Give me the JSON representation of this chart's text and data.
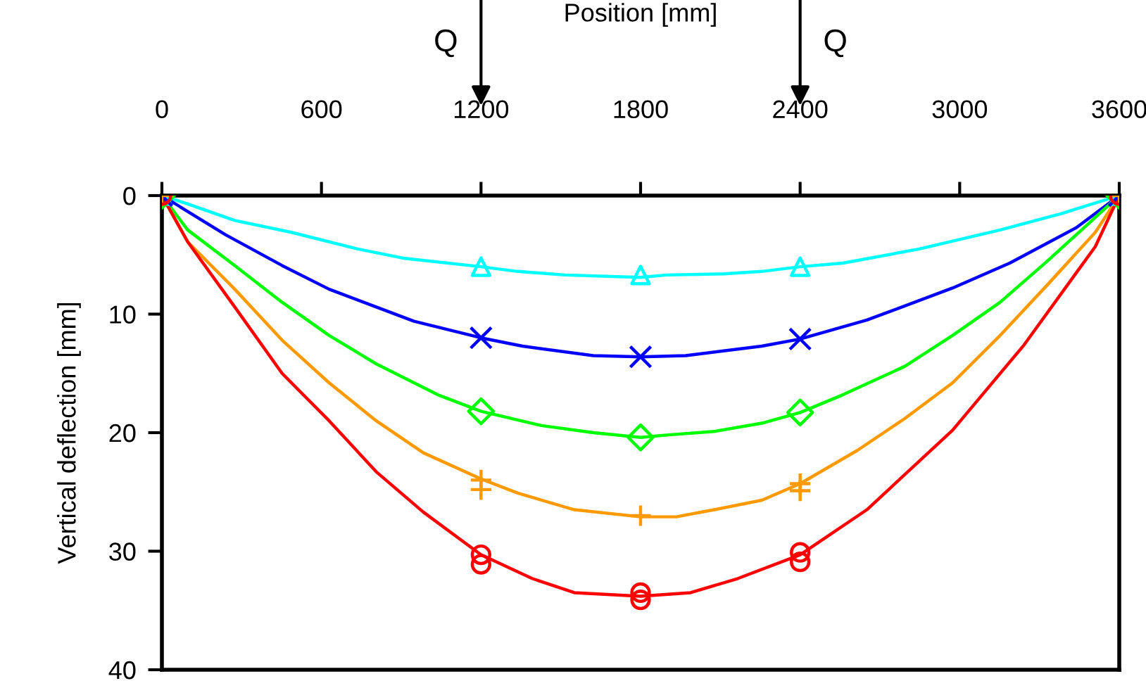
{
  "chart_data": {
    "type": "line",
    "xlabel": "Position [mm]",
    "ylabel": "Vertical deflection [mm]",
    "xlim": [
      0,
      3600
    ],
    "xticks": [
      0,
      600,
      1200,
      1800,
      2400,
      3000,
      3600
    ],
    "ylim": [
      40,
      0
    ],
    "yticks": [
      0,
      10,
      20,
      30,
      40
    ],
    "grid": false,
    "legend": false,
    "marker": "none",
    "line_style": "solid",
    "annotations": [
      "Q",
      "Q"
    ],
    "series": [
      {
        "color": "#00ffff",
        "x": [
          0,
          97,
          274,
          487,
          736,
          913,
          1200,
          1338,
          1516,
          1800,
          1898,
          2113,
          2256,
          2400,
          2561,
          2848,
          3152,
          3385,
          3600
        ],
        "values": [
          0,
          0.7,
          2.1,
          3.1,
          4.5,
          5.3,
          6.0,
          6.4,
          6.7,
          6.9,
          6.7,
          6.6,
          6.4,
          6.0,
          5.7,
          4.5,
          2.9,
          1.5,
          0
        ]
      },
      {
        "color": "#0000ff",
        "x": [
          0,
          239,
          452,
          629,
          806,
          948,
          1200,
          1356,
          1622,
          1800,
          1970,
          2256,
          2400,
          2651,
          2973,
          3188,
          3439,
          3600
        ],
        "values": [
          0,
          3.3,
          5.9,
          7.9,
          9.4,
          10.6,
          12.0,
          12.7,
          13.5,
          13.6,
          13.5,
          12.7,
          12.1,
          10.5,
          7.8,
          5.7,
          2.7,
          0
        ]
      },
      {
        "color": "#00ff00",
        "x": [
          0,
          97,
          274,
          452,
          629,
          806,
          1037,
          1200,
          1427,
          1622,
          1800,
          1898,
          2077,
          2256,
          2400,
          2561,
          2794,
          2973,
          3152,
          3331,
          3600
        ],
        "values": [
          0,
          2.9,
          5.9,
          9.0,
          11.8,
          14.2,
          16.8,
          18.2,
          19.4,
          20.0,
          20.4,
          20.2,
          19.9,
          19.2,
          18.3,
          16.8,
          14.4,
          11.8,
          9.0,
          5.5,
          0
        ]
      },
      {
        "color": "#ff9900",
        "x": [
          0,
          97,
          274,
          452,
          629,
          806,
          983,
          1200,
          1338,
          1551,
          1800,
          1934,
          2077,
          2256,
          2400,
          2615,
          2794,
          2973,
          3152,
          3331,
          3510,
          3600
        ],
        "values": [
          0,
          3.9,
          7.9,
          12.2,
          15.8,
          19.0,
          21.7,
          23.9,
          25.1,
          26.5,
          27.1,
          27.1,
          26.5,
          25.7,
          24.3,
          21.5,
          18.8,
          15.8,
          11.8,
          7.5,
          3.1,
          0
        ]
      },
      {
        "color": "#ff0000",
        "x": [
          0,
          97,
          274,
          452,
          629,
          806,
          983,
          1200,
          1392,
          1551,
          1800,
          1988,
          2166,
          2400,
          2651,
          2973,
          3242,
          3510,
          3600
        ],
        "values": [
          0,
          3.9,
          9.4,
          15.0,
          19.0,
          23.3,
          26.7,
          30.3,
          32.3,
          33.5,
          33.8,
          33.5,
          32.3,
          30.3,
          26.5,
          19.8,
          12.6,
          4.3,
          0
        ]
      },
      {
        "type": "scatter",
        "marker": "triangle",
        "color": "#00ffff",
        "x": [
          0,
          1200,
          1800,
          2400,
          3600
        ],
        "values": [
          0,
          6.0,
          6.7,
          6.0,
          0
        ]
      },
      {
        "type": "scatter",
        "marker": "cross",
        "color": "#0000ff",
        "x": [
          0,
          1200,
          1800,
          2400,
          3600
        ],
        "values": [
          0,
          12.0,
          13.6,
          12.1,
          0
        ]
      },
      {
        "type": "scatter",
        "marker": "diamond",
        "color": "#00ff00",
        "x": [
          0,
          1200,
          1800,
          2400,
          3600
        ],
        "values": [
          0,
          18.2,
          20.4,
          18.3,
          0
        ]
      },
      {
        "type": "scatter",
        "marker": "plus",
        "color": "#ff9900",
        "x": [
          0,
          1200,
          1200,
          1800,
          2400,
          2400,
          3600
        ],
        "values": [
          0,
          24.0,
          24.8,
          27.0,
          24.3,
          24.9,
          0
        ]
      },
      {
        "type": "scatter",
        "marker": "circle",
        "color": "#ff0000",
        "x": [
          0,
          1200,
          1200,
          1800,
          1800,
          2400,
          2400,
          3600
        ],
        "values": [
          0,
          30.3,
          31.1,
          33.5,
          34.1,
          30.1,
          30.9,
          0
        ]
      }
    ]
  }
}
